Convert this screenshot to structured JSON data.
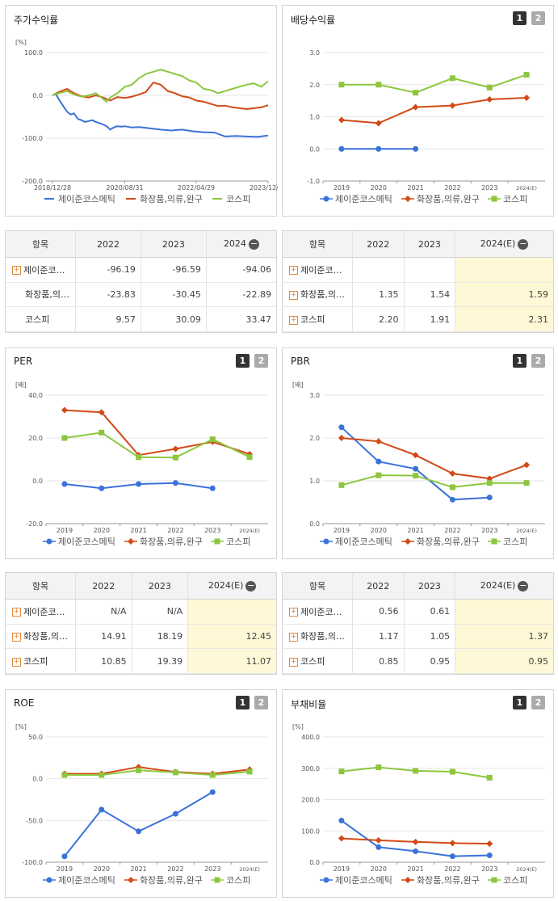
{
  "colors": {
    "series1": "#3b72d9",
    "series2": "#d24a17",
    "series3": "#8cc63e",
    "highlight": "#fef8d6"
  },
  "series_names": [
    "제이준코스메틱",
    "화장품,의류,완구",
    "코스피"
  ],
  "pager": {
    "p1": "1",
    "p2": "2"
  },
  "charts": [
    {
      "id": "stock",
      "title": "주가수익률",
      "unit": "[%]",
      "has_pager": false,
      "chart_data": {
        "type": "line",
        "title": "주가수익률",
        "ylabel": "[%]",
        "ylim": [
          -200,
          100
        ],
        "yticks": [
          "100.0",
          "0.0",
          "-100.0",
          "-200.0"
        ],
        "xlim": [
          "2018-12-28",
          "2023-12-28"
        ],
        "xtick_labels": [
          "2018/12/28",
          "2020/08/31",
          "2022/04/29",
          "2023/12/28"
        ],
        "xtick_dates": [
          "2018-12-28",
          "2020-08-31",
          "2022-04-29",
          "2023-12-28"
        ],
        "series": [
          {
            "name": "제이준코스메틱",
            "style": "line",
            "x": [
              "2018-12-28",
              "2019-01-25",
              "2019-02-22",
              "2019-03-29",
              "2019-04-30",
              "2019-05-31",
              "2019-06-28",
              "2019-07-31",
              "2019-08-30",
              "2019-09-30",
              "2019-10-31",
              "2019-11-29",
              "2019-12-30",
              "2020-01-31",
              "2020-02-28",
              "2020-03-31",
              "2020-04-29",
              "2020-05-29",
              "2020-06-30",
              "2020-07-31",
              "2020-08-31",
              "2020-10-30",
              "2020-12-30",
              "2021-03-31",
              "2021-06-30",
              "2021-09-30",
              "2021-12-30",
              "2022-03-31",
              "2022-06-30",
              "2022-09-30",
              "2022-12-29",
              "2023-03-31",
              "2023-06-30",
              "2023-09-27",
              "2023-12-28"
            ],
            "values": [
              0,
              3,
              -10,
              -25,
              -38,
              -45,
              -42,
              -55,
              -58,
              -62,
              -60,
              -58,
              -62,
              -65,
              -68,
              -72,
              -80,
              -75,
              -72,
              -73,
              -72,
              -75,
              -74,
              -77,
              -80,
              -82,
              -80,
              -84,
              -86,
              -87,
              -96,
              -95,
              -96,
              -97,
              -94
            ]
          },
          {
            "name": "화장품,의류,완구",
            "style": "line",
            "x": [
              "2018-12-28",
              "2019-02-22",
              "2019-04-30",
              "2019-06-28",
              "2019-08-30",
              "2019-10-31",
              "2019-12-30",
              "2020-02-28",
              "2020-04-29",
              "2020-06-30",
              "2020-08-31",
              "2020-10-30",
              "2020-12-30",
              "2021-02-26",
              "2021-04-30",
              "2021-06-30",
              "2021-08-31",
              "2021-10-29",
              "2021-12-30",
              "2022-02-28",
              "2022-04-29",
              "2022-06-30",
              "2022-08-31",
              "2022-10-31",
              "2022-12-29",
              "2023-02-28",
              "2023-04-28",
              "2023-06-30",
              "2023-08-31",
              "2023-10-31",
              "2023-12-28"
            ],
            "values": [
              0,
              8,
              15,
              5,
              -2,
              -5,
              0,
              -5,
              -12,
              -4,
              -6,
              -3,
              2,
              8,
              30,
              25,
              10,
              5,
              -2,
              -5,
              -12,
              -15,
              -20,
              -25,
              -24,
              -28,
              -30,
              -32,
              -30,
              -28,
              -23
            ]
          },
          {
            "name": "코스피",
            "style": "line",
            "x": [
              "2018-12-28",
              "2019-02-22",
              "2019-04-30",
              "2019-06-28",
              "2019-08-30",
              "2019-10-31",
              "2019-12-30",
              "2020-02-28",
              "2020-03-31",
              "2020-04-29",
              "2020-06-30",
              "2020-08-31",
              "2020-10-30",
              "2020-12-30",
              "2021-02-26",
              "2021-04-30",
              "2021-06-30",
              "2021-08-31",
              "2021-10-29",
              "2021-12-30",
              "2022-02-28",
              "2022-04-29",
              "2022-06-30",
              "2022-08-31",
              "2022-10-31",
              "2022-12-29",
              "2023-02-28",
              "2023-04-28",
              "2023-06-30",
              "2023-08-31",
              "2023-10-31",
              "2023-12-28"
            ],
            "values": [
              0,
              5,
              10,
              2,
              -3,
              0,
              5,
              -8,
              -15,
              -5,
              5,
              20,
              25,
              40,
              50,
              55,
              60,
              55,
              50,
              45,
              35,
              30,
              15,
              12,
              5,
              10,
              15,
              20,
              25,
              28,
              20,
              33
            ]
          }
        ]
      }
    },
    {
      "id": "dividend",
      "title": "배당수익률",
      "unit": "",
      "has_pager": true,
      "chart_data": {
        "type": "line",
        "title": "배당수익률",
        "categories": [
          "2019",
          "2020",
          "2021",
          "2022",
          "2023",
          "2024(E)"
        ],
        "ylim": [
          -1.0,
          3.0
        ],
        "yticks": [
          "3.0",
          "2.0",
          "1.0",
          "0.0",
          "-1.0"
        ],
        "series": [
          {
            "name": "제이준코스메틱",
            "values": [
              0,
              0,
              0,
              null,
              null,
              null
            ]
          },
          {
            "name": "화장품,의류,완구",
            "values": [
              0.9,
              0.8,
              1.3,
              1.35,
              1.54,
              1.59
            ]
          },
          {
            "name": "코스피",
            "values": [
              2.0,
              2.0,
              1.75,
              2.2,
              1.91,
              2.31
            ]
          }
        ]
      }
    },
    {
      "id": "per",
      "title": "PER",
      "unit": "[배]",
      "has_pager": true,
      "chart_data": {
        "type": "line",
        "title": "PER",
        "ylabel": "[배]",
        "categories": [
          "2019",
          "2020",
          "2021",
          "2022",
          "2023",
          "2024(E)"
        ],
        "ylim": [
          -20.0,
          40.0
        ],
        "yticks": [
          "40.0",
          "20.0",
          "0.0",
          "-20.0"
        ],
        "series": [
          {
            "name": "제이준코스메틱",
            "values": [
              -1.5,
              -3.5,
              -1.5,
              -1.0,
              -3.5,
              null
            ]
          },
          {
            "name": "화장품,의류,완구",
            "values": [
              33,
              32,
              12,
              14.91,
              18.19,
              12.45
            ]
          },
          {
            "name": "코스피",
            "values": [
              20,
              22.5,
              11,
              10.85,
              19.39,
              11.07
            ]
          }
        ]
      }
    },
    {
      "id": "pbr",
      "title": "PBR",
      "unit": "[배]",
      "has_pager": true,
      "chart_data": {
        "type": "line",
        "title": "PBR",
        "ylabel": "[배]",
        "categories": [
          "2019",
          "2020",
          "2021",
          "2022",
          "2023",
          "2024(E)"
        ],
        "ylim": [
          0.0,
          3.0
        ],
        "yticks": [
          "3.0",
          "2.0",
          "1.0",
          "0.0"
        ],
        "series": [
          {
            "name": "제이준코스메틱",
            "values": [
              2.25,
              1.45,
              1.28,
              0.56,
              0.61,
              null
            ]
          },
          {
            "name": "화장품,의류,완구",
            "values": [
              2.0,
              1.92,
              1.6,
              1.17,
              1.05,
              1.37
            ]
          },
          {
            "name": "코스피",
            "values": [
              0.9,
              1.13,
              1.12,
              0.85,
              0.95,
              0.95
            ]
          }
        ]
      }
    },
    {
      "id": "roe",
      "title": "ROE",
      "unit": "[%]",
      "has_pager": true,
      "chart_data": {
        "type": "line",
        "title": "ROE",
        "ylabel": "[%]",
        "categories": [
          "2019",
          "2020",
          "2021",
          "2022",
          "2023",
          "2024(E)"
        ],
        "ylim": [
          -100.0,
          50.0
        ],
        "yticks": [
          "50.0",
          "0.0",
          "-50.0",
          "-100.0"
        ],
        "series": [
          {
            "name": "제이준코스메틱",
            "values": [
              -93,
              -37,
              -63,
              -42,
              -16,
              null
            ]
          },
          {
            "name": "화장품,의류,완구",
            "values": [
              6,
              6,
              14,
              8,
              6,
              11
            ]
          },
          {
            "name": "코스피",
            "values": [
              4.5,
              4.5,
              10,
              7.5,
              4.5,
              8.5
            ]
          }
        ]
      }
    },
    {
      "id": "debt",
      "title": "부채비율",
      "unit": "[%]",
      "has_pager": true,
      "chart_data": {
        "type": "line",
        "title": "부채비율",
        "ylabel": "[%]",
        "categories": [
          "2019",
          "2020",
          "2021",
          "2022",
          "2023",
          "2024(E)"
        ],
        "ylim": [
          0.0,
          400.0
        ],
        "yticks": [
          "400.0",
          "300.0",
          "200.0",
          "100.0",
          "0.0"
        ],
        "series": [
          {
            "name": "제이준코스메틱",
            "values": [
              133,
              48,
              35,
              19,
              22,
              null
            ]
          },
          {
            "name": "화장품,의류,완구",
            "values": [
              76,
              70,
              65,
              61,
              59,
              null
            ]
          },
          {
            "name": "코스피",
            "values": [
              290,
              303,
              292,
              289,
              270,
              null
            ]
          }
        ]
      }
    }
  ],
  "tables": [
    {
      "id": "stock-table",
      "headers": [
        "항목",
        "2022",
        "2023",
        "2024"
      ],
      "rows": [
        {
          "label": "제이준코…",
          "plus": true,
          "cells": [
            "-96.19",
            "-96.59",
            "-94.06"
          ]
        },
        {
          "label": "화장품,의…",
          "plus": false,
          "cells": [
            "-23.83",
            "-30.45",
            "-22.89"
          ]
        },
        {
          "label": "코스피",
          "plus": false,
          "cells": [
            "9.57",
            "30.09",
            "33.47"
          ]
        }
      ]
    },
    {
      "id": "dividend-table",
      "headers": [
        "항목",
        "2022",
        "2023",
        "2024(E)"
      ],
      "rows": [
        {
          "label": "제이준코…",
          "plus": true,
          "cells": [
            "",
            "",
            ""
          ]
        },
        {
          "label": "화장품,의…",
          "plus": true,
          "cells": [
            "1.35",
            "1.54",
            "1.59"
          ]
        },
        {
          "label": "코스피",
          "plus": true,
          "cells": [
            "2.20",
            "1.91",
            "2.31"
          ]
        }
      ]
    },
    {
      "id": "per-table",
      "headers": [
        "항목",
        "2022",
        "2023",
        "2024(E)"
      ],
      "rows": [
        {
          "label": "제이준코…",
          "plus": true,
          "cells": [
            "N/A",
            "N/A",
            ""
          ]
        },
        {
          "label": "화장품,의…",
          "plus": true,
          "cells": [
            "14.91",
            "18.19",
            "12.45"
          ]
        },
        {
          "label": "코스피",
          "plus": true,
          "cells": [
            "10.85",
            "19.39",
            "11.07"
          ]
        }
      ]
    },
    {
      "id": "pbr-table",
      "headers": [
        "항목",
        "2022",
        "2023",
        "2024(E)"
      ],
      "rows": [
        {
          "label": "제이준코…",
          "plus": true,
          "cells": [
            "0.56",
            "0.61",
            ""
          ]
        },
        {
          "label": "화장품,의…",
          "plus": true,
          "cells": [
            "1.17",
            "1.05",
            "1.37"
          ]
        },
        {
          "label": "코스피",
          "plus": true,
          "cells": [
            "0.85",
            "0.95",
            "0.95"
          ]
        }
      ]
    }
  ]
}
